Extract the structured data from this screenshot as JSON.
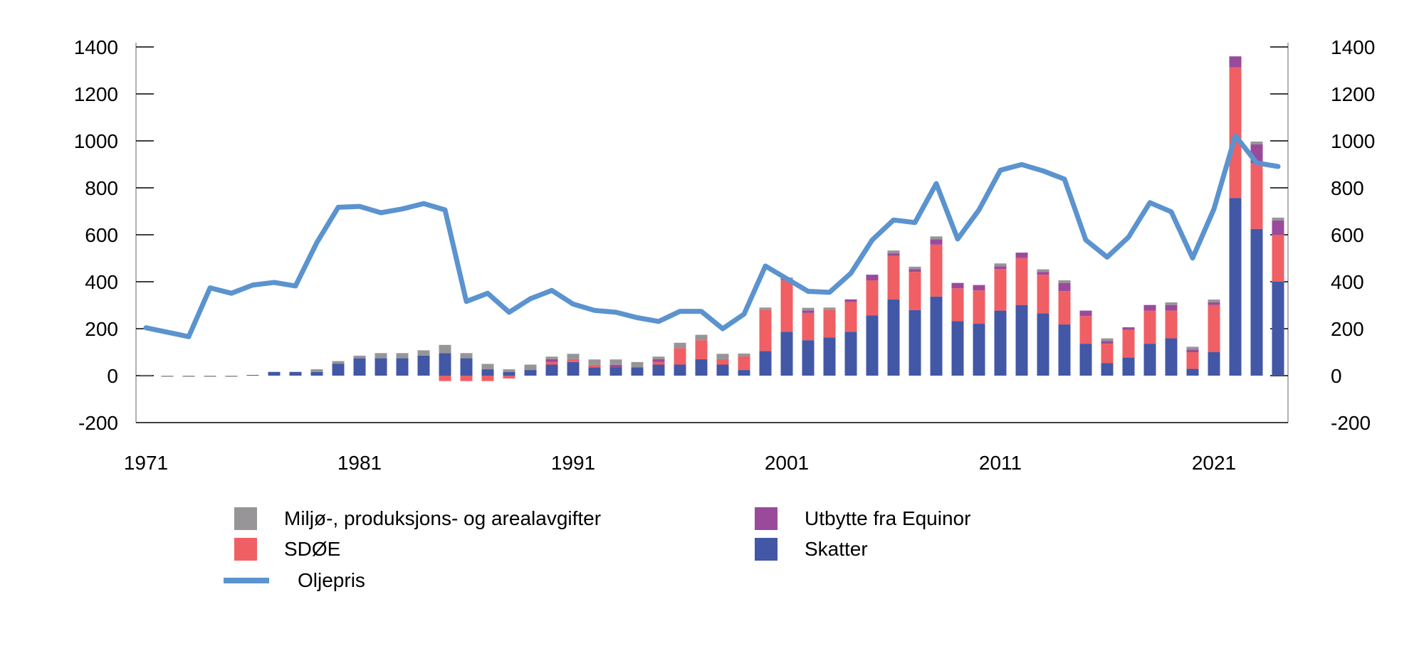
{
  "chart_data": {
    "type": "bar",
    "subtype": "stacked-bar-with-line",
    "title": "",
    "xlabel": "",
    "ylabel_left": "",
    "ylabel_right": "",
    "x": [
      1971,
      1972,
      1973,
      1974,
      1975,
      1976,
      1977,
      1978,
      1979,
      1980,
      1981,
      1982,
      1983,
      1984,
      1985,
      1986,
      1987,
      1988,
      1989,
      1990,
      1991,
      1992,
      1993,
      1994,
      1995,
      1996,
      1997,
      1998,
      1999,
      2000,
      2001,
      2002,
      2003,
      2004,
      2005,
      2006,
      2007,
      2008,
      2009,
      2010,
      2011,
      2012,
      2013,
      2014,
      2015,
      2016,
      2017,
      2018,
      2019,
      2020,
      2021,
      2022,
      2023,
      2024
    ],
    "x_tick_labels": [
      "1971",
      "1981",
      "1991",
      "2001",
      "2011",
      "2021"
    ],
    "ylim": [
      -200,
      1400
    ],
    "y_ticks": [
      "-200",
      "0",
      "200",
      "400",
      "600",
      "800",
      "1000",
      "1200",
      "1400"
    ],
    "y_tick_values": [
      -200,
      0,
      200,
      400,
      600,
      800,
      1000,
      1200,
      1400
    ],
    "grid": false,
    "legend_position": "bottom",
    "series": [
      {
        "name": "Skatter",
        "kind": "bar",
        "color": "#4257a6",
        "values": [
          0,
          0,
          0,
          0,
          0,
          3,
          16,
          16,
          16,
          50,
          74,
          74,
          74,
          85,
          96,
          74,
          27,
          16,
          24,
          47,
          58,
          35,
          35,
          35,
          47,
          47,
          70,
          47,
          24,
          105,
          187,
          151,
          163,
          187,
          256,
          325,
          279,
          337,
          232,
          221,
          277,
          301,
          265,
          218,
          136,
          53,
          77,
          136,
          159,
          29,
          100,
          757,
          625,
          400
        ]
      },
      {
        "name": "SDØE",
        "kind": "bar",
        "color": "#f05f63",
        "values": [
          0,
          0,
          0,
          0,
          0,
          0,
          0,
          0,
          0,
          0,
          0,
          0,
          0,
          0,
          -23,
          -23,
          -23,
          -12,
          0,
          11,
          12,
          11,
          0,
          0,
          11,
          70,
          81,
          23,
          58,
          174,
          220,
          116,
          116,
          127,
          150,
          185,
          163,
          221,
          140,
          142,
          177,
          200,
          165,
          142,
          118,
          83,
          118,
          141,
          118,
          71,
          201,
          556,
          280,
          200
        ]
      },
      {
        "name": "Utbytte fra Equinor",
        "kind": "bar",
        "color": "#9a4a9b",
        "values": [
          0,
          0,
          0,
          0,
          0,
          0,
          0,
          0,
          0,
          0,
          0,
          0,
          0,
          0,
          0,
          0,
          0,
          0,
          0,
          12,
          0,
          0,
          11,
          0,
          12,
          0,
          0,
          0,
          0,
          0,
          5,
          11,
          0,
          11,
          24,
          11,
          11,
          23,
          23,
          23,
          12,
          23,
          12,
          35,
          23,
          12,
          11,
          24,
          24,
          11,
          11,
          47,
          80,
          61
        ]
      },
      {
        "name": "Miljø-, produksjons- og arealavgifter",
        "kind": "bar",
        "color": "#979597",
        "values": [
          -5,
          -5,
          -5,
          -5,
          -5,
          0,
          0,
          0,
          11,
          12,
          11,
          22,
          22,
          23,
          35,
          22,
          23,
          11,
          23,
          11,
          23,
          23,
          23,
          23,
          11,
          23,
          23,
          23,
          12,
          11,
          6,
          11,
          11,
          0,
          0,
          12,
          11,
          12,
          0,
          0,
          12,
          0,
          11,
          11,
          0,
          11,
          0,
          0,
          11,
          12,
          12,
          0,
          12,
          12
        ]
      },
      {
        "name": "Oljepris",
        "kind": "line",
        "color": "#5b93cf",
        "values": [
          204,
          185,
          166,
          374,
          351,
          386,
          397,
          382,
          567,
          717,
          721,
          694,
          710,
          733,
          706,
          316,
          351,
          270,
          328,
          363,
          305,
          278,
          270,
          247,
          231,
          274,
          274,
          200,
          262,
          467,
          413,
          359,
          355,
          436,
          578,
          663,
          652,
          818,
          582,
          706,
          875,
          899,
          872,
          837,
          578,
          505,
          590,
          737,
          698,
          501,
          710,
          1022,
          906,
          891
        ]
      }
    ]
  },
  "legend": {
    "miljo": "Miljø-, produksjons- og arealavgifter",
    "utbytte": "Utbytte fra Equinor",
    "sdoe": "SDØE",
    "skatter": "Skatter",
    "oljepris": "Oljepris"
  }
}
